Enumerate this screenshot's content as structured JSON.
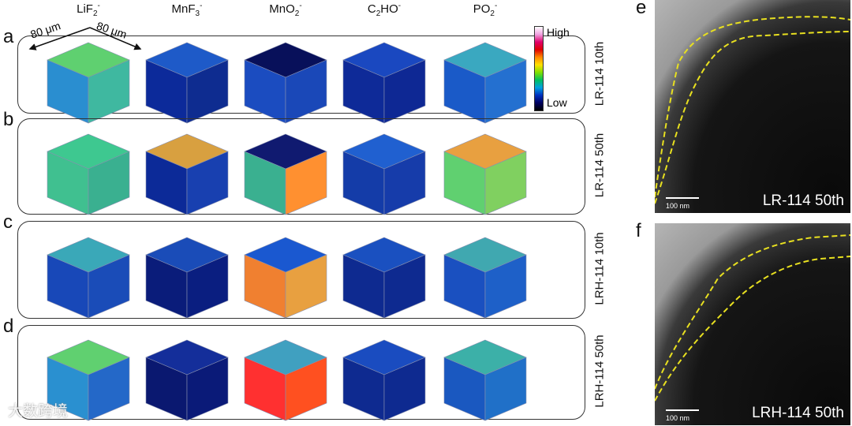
{
  "columns": [
    "LiF2-",
    "MnF3-",
    "MnO2-",
    "C2HO-",
    "PO2-"
  ],
  "column_labels": [
    {
      "base": "LiF",
      "sub": "2",
      "sup": "-"
    },
    {
      "base": "MnF",
      "sub": "3",
      "sup": "-"
    },
    {
      "base": "MnO",
      "sub": "2",
      "sup": "-"
    },
    {
      "base": "C",
      "sub": "2",
      "rest": "HO",
      "sup": "-"
    },
    {
      "base": "PO",
      "sub": "2",
      "sup": "-"
    }
  ],
  "dimension_labels": [
    "80 μm",
    "80 μm"
  ],
  "colorbar": {
    "high": "High",
    "low": "Low"
  },
  "rows": [
    {
      "letter": "a",
      "label": "LR-114 10th",
      "cubes": [
        [
          "#5fd070",
          "#2a8ed0",
          "#3fb8a0"
        ],
        [
          "#1e5ac8",
          "#0c2a9a",
          "#0e2c90"
        ],
        [
          "#08105a",
          "#1b4cc0",
          "#1a48b8"
        ],
        [
          "#1a48c0",
          "#0e2a98",
          "#0e2894"
        ],
        [
          "#3aa8c0",
          "#1a5ac8",
          "#2470d0"
        ]
      ]
    },
    {
      "letter": "b",
      "label": "LR-114 50th",
      "cubes": [
        [
          "#3ec890",
          "#40c090",
          "#3ab090"
        ],
        [
          "#d8a040",
          "#0c2a98",
          "#1840b0"
        ],
        [
          "#101a70",
          "#3ab090",
          "#ff9030"
        ],
        [
          "#2060d0",
          "#143ca8",
          "#163caa"
        ],
        [
          "#e8a040",
          "#60d070",
          "#80d060"
        ]
      ]
    },
    {
      "letter": "c",
      "label": "LRH-114 10th",
      "cubes": [
        [
          "#3aa8b8",
          "#1848b8",
          "#1a4cb8"
        ],
        [
          "#1a4cb8",
          "#0a1c7a",
          "#0a1e80"
        ],
        [
          "#1a58d0",
          "#f08030",
          "#e8a040"
        ],
        [
          "#1a50c0",
          "#0e2a90",
          "#0e2a90"
        ],
        [
          "#40a8b0",
          "#1a50c0",
          "#1e60c8"
        ]
      ]
    },
    {
      "letter": "d",
      "label": "LRH-114 50th",
      "cubes": [
        [
          "#60d070",
          "#2a90d0",
          "#2468c8"
        ],
        [
          "#142e9a",
          "#0a1870",
          "#0a1a78"
        ],
        [
          "#40a0c0",
          "#ff3030",
          "#ff5020"
        ],
        [
          "#1a4cc0",
          "#0e2a90",
          "#0e2a90"
        ],
        [
          "#3cb0a8",
          "#1a58c0",
          "#2070c8"
        ]
      ]
    }
  ],
  "tem": [
    {
      "letter": "e",
      "label": "LR-114 50th",
      "scale": "100 nm"
    },
    {
      "letter": "f",
      "label": "LRH-114 50th",
      "scale": "100 nm"
    }
  ],
  "watermark": "大数跨境"
}
